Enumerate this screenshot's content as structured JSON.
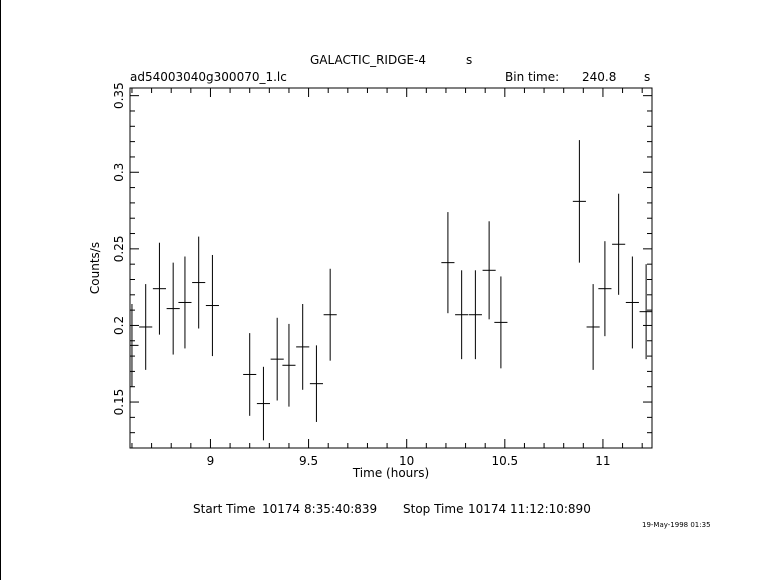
{
  "header": {
    "object_name": "GALACTIC_RIDGE-4",
    "object_unit": "s",
    "file_name": "ad54003040g300070_1.lc",
    "bin_label": "Bin time:",
    "bin_value": "240.8",
    "bin_unit": "s"
  },
  "footer": {
    "start_label": "Start Time",
    "start_value": "10174  8:35:40:839",
    "stop_label": "Stop Time",
    "stop_value": "10174 11:12:10:890",
    "timestamp": "19-May-1998 01:35"
  },
  "chart_data": {
    "type": "scatter",
    "xlabel": "Time (hours)",
    "ylabel": "Counts/s",
    "xlim": [
      8.59,
      11.25
    ],
    "ylim": [
      0.12,
      0.355
    ],
    "xticks": [
      9,
      9.5,
      10,
      10.5,
      11
    ],
    "xtick_labels": [
      "9",
      "9.5",
      "10",
      "10.5",
      "11"
    ],
    "yticks": [
      0.15,
      0.2,
      0.25,
      0.3,
      0.35
    ],
    "ytick_labels": [
      "0.15",
      "0.2",
      "0.25",
      "0.3",
      "0.35"
    ],
    "x_halfwidth": 0.0334,
    "points": [
      {
        "x": 8.6,
        "y": 0.187,
        "err": 0.027
      },
      {
        "x": 8.67,
        "y": 0.199,
        "err": 0.028
      },
      {
        "x": 8.74,
        "y": 0.224,
        "err": 0.03
      },
      {
        "x": 8.81,
        "y": 0.211,
        "err": 0.03
      },
      {
        "x": 8.87,
        "y": 0.215,
        "err": 0.03
      },
      {
        "x": 8.94,
        "y": 0.228,
        "err": 0.03
      },
      {
        "x": 9.01,
        "y": 0.213,
        "err": 0.033
      },
      {
        "x": 9.2,
        "y": 0.168,
        "err": 0.027
      },
      {
        "x": 9.27,
        "y": 0.149,
        "err": 0.024
      },
      {
        "x": 9.34,
        "y": 0.178,
        "err": 0.027
      },
      {
        "x": 9.4,
        "y": 0.174,
        "err": 0.027
      },
      {
        "x": 9.47,
        "y": 0.186,
        "err": 0.028
      },
      {
        "x": 9.54,
        "y": 0.162,
        "err": 0.025
      },
      {
        "x": 9.61,
        "y": 0.207,
        "err": 0.03
      },
      {
        "x": 10.21,
        "y": 0.241,
        "err": 0.033
      },
      {
        "x": 10.28,
        "y": 0.207,
        "err": 0.029
      },
      {
        "x": 10.35,
        "y": 0.207,
        "err": 0.029
      },
      {
        "x": 10.42,
        "y": 0.236,
        "err": 0.032
      },
      {
        "x": 10.48,
        "y": 0.202,
        "err": 0.03
      },
      {
        "x": 10.88,
        "y": 0.281,
        "err": 0.04
      },
      {
        "x": 10.95,
        "y": 0.199,
        "err": 0.028
      },
      {
        "x": 11.01,
        "y": 0.224,
        "err": 0.031
      },
      {
        "x": 11.08,
        "y": 0.253,
        "err": 0.033
      },
      {
        "x": 11.15,
        "y": 0.215,
        "err": 0.03
      },
      {
        "x": 11.22,
        "y": 0.209,
        "err": 0.031
      }
    ]
  }
}
